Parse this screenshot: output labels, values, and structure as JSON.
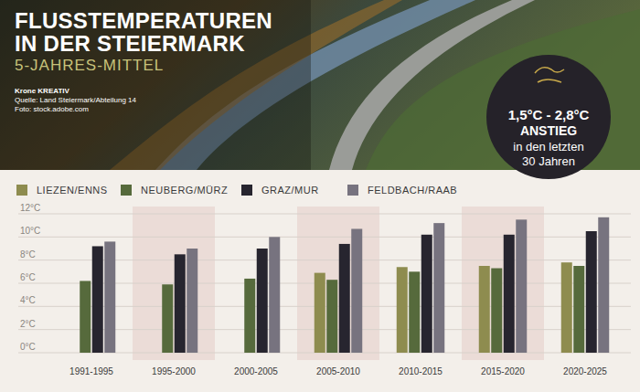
{
  "chart_data": {
    "type": "bar",
    "title": "FLUSSTEMPERATUREN IN DER STEIERMARK",
    "subtitle": "5-JAHRES-MITTEL",
    "credits": [
      "Krone KREATIV",
      "Quelle: Land Steiermark/Abteilung 14",
      "Foto: stock.adobe.com"
    ],
    "annotations": [
      "1,5°C - 2,8°C",
      "ANSTIEG",
      "in den letzten",
      "30 Jahren"
    ],
    "categories": [
      "1991-1995",
      "1995-2000",
      "2000-2005",
      "2005-2010",
      "2010-2015",
      "2015-2020",
      "2020-2025"
    ],
    "series": [
      {
        "name": "LIEZEN/ENNS",
        "color": "#8e8c4f",
        "values": [
          null,
          null,
          null,
          6.9,
          7.4,
          7.5,
          7.8
        ]
      },
      {
        "name": "NEUBERG/MÜRZ",
        "color": "#566a3c",
        "values": [
          6.2,
          5.9,
          6.4,
          6.3,
          7.0,
          7.3,
          7.5
        ]
      },
      {
        "name": "GRAZ/MUR",
        "color": "#27252f",
        "values": [
          9.2,
          8.5,
          9.0,
          9.4,
          10.2,
          10.2,
          10.5
        ]
      },
      {
        "name": "FELDBACH/RAAB",
        "color": "#77737f",
        "values": [
          9.6,
          9.0,
          10.0,
          10.7,
          11.2,
          11.5,
          11.7
        ]
      }
    ],
    "ylim": [
      0,
      12
    ],
    "yticks": [
      {
        "value": 0,
        "label": "0°C"
      },
      {
        "value": 2,
        "label": "2°C"
      },
      {
        "value": 4,
        "label": "4°C"
      },
      {
        "value": 6,
        "label": "6°C"
      },
      {
        "value": 8,
        "label": "8°C"
      },
      {
        "value": 10,
        "label": "10°C"
      },
      {
        "value": 12,
        "label": "12°C"
      }
    ],
    "grid": true,
    "legend": "top"
  }
}
